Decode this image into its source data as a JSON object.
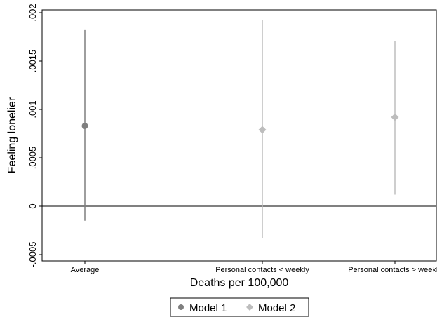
{
  "chart_data": {
    "type": "scatter",
    "subtype": "coefficient-plot",
    "xlabel": "Deaths per 100,000",
    "ylabel": "Feeling lonelier",
    "categories": [
      "Average",
      "Personal contacts < weekly",
      "Personal contacts > weekly"
    ],
    "ylim": [
      -0.0005,
      0.002
    ],
    "yticks": [
      {
        "value": -0.0005,
        "label": "-.0005"
      },
      {
        "value": 0,
        "label": "0"
      },
      {
        "value": 0.0005,
        "label": ".0005"
      },
      {
        "value": 0.001,
        "label": ".001"
      },
      {
        "value": 0.0015,
        "label": ".0015"
      },
      {
        "value": 0.002,
        "label": ".002"
      }
    ],
    "reference_lines": [
      {
        "value": 0,
        "style": "solid"
      },
      {
        "value": 0.00083,
        "style": "dashed"
      }
    ],
    "series": [
      {
        "name": "Model 1",
        "marker": "circle",
        "color": "#7f7f7f",
        "points": [
          {
            "category": "Average",
            "estimate": 0.00083,
            "ci": [
              -0.00015,
              0.00182
            ]
          }
        ]
      },
      {
        "name": "Model 2",
        "marker": "diamond",
        "color": "#bdbdbd",
        "points": [
          {
            "category": "Personal contacts < weekly",
            "estimate": 0.00079,
            "ci": [
              -0.00033,
              0.00192
            ]
          },
          {
            "category": "Personal contacts > weekly",
            "estimate": 0.00092,
            "ci": [
              0.00012,
              0.00171
            ]
          }
        ]
      }
    ],
    "grid": false,
    "legend": {
      "position": "bottom",
      "entries": [
        "Model 1",
        "Model 2"
      ]
    }
  }
}
